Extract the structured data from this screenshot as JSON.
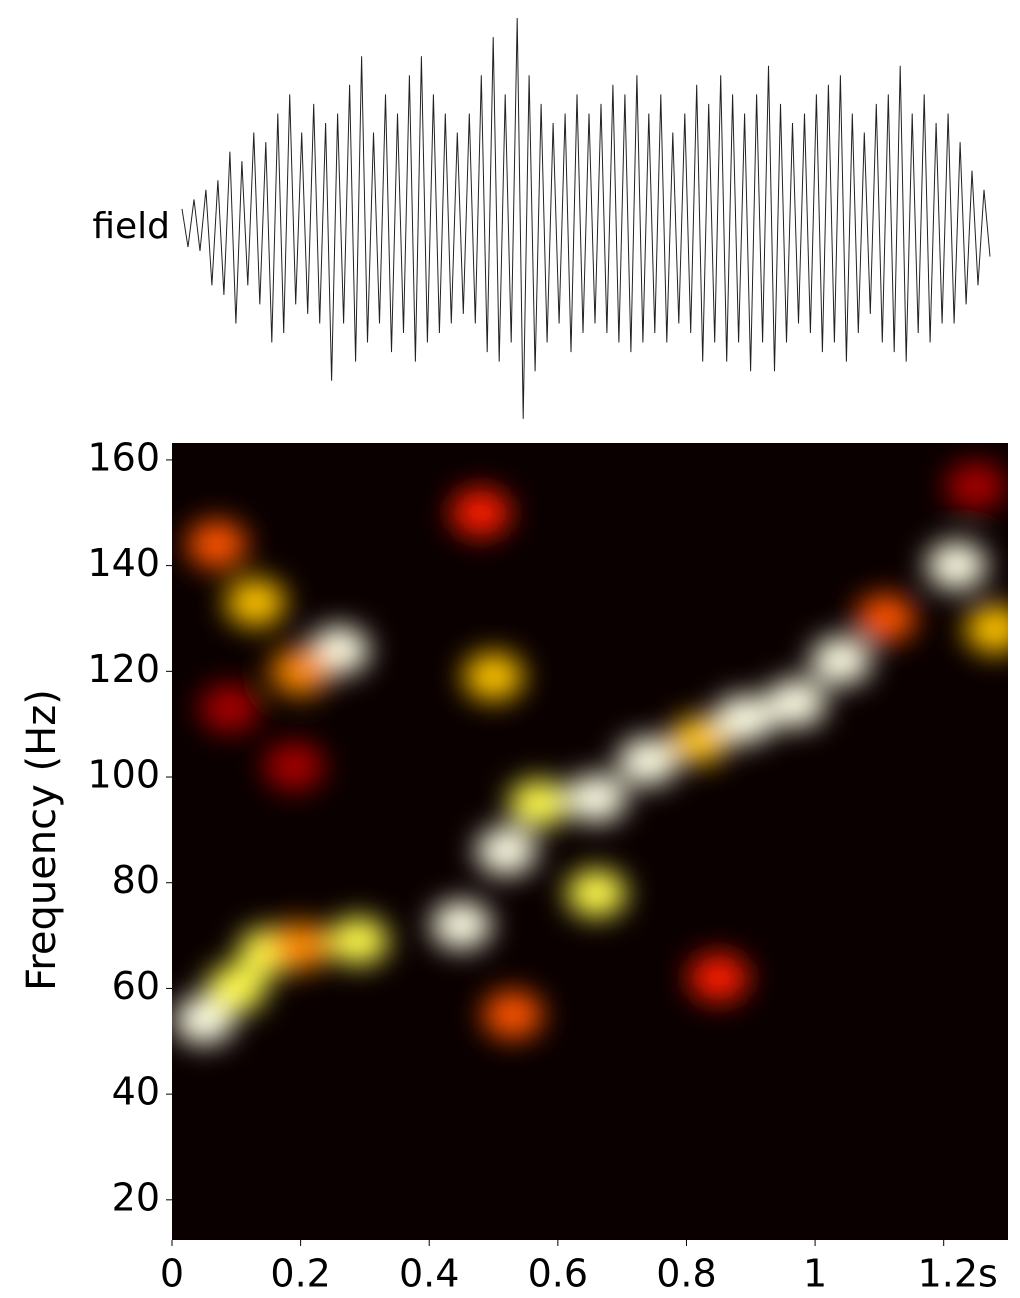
{
  "chart_data": [
    {
      "type": "line",
      "label": "field",
      "color": "#222222",
      "ylim": [
        -1.1,
        1.1
      ],
      "values": [
        0.1,
        -0.1,
        0.15,
        -0.12,
        0.2,
        -0.3,
        0.25,
        -0.35,
        0.4,
        -0.5,
        0.35,
        -0.3,
        0.5,
        -0.4,
        0.45,
        -0.6,
        0.6,
        -0.55,
        0.7,
        -0.4,
        0.5,
        -0.45,
        0.65,
        -0.5,
        0.55,
        -0.8,
        0.6,
        -0.5,
        0.75,
        -0.7,
        0.9,
        -0.6,
        0.5,
        -0.5,
        0.7,
        -0.65,
        0.6,
        -0.55,
        0.8,
        -0.7,
        0.9,
        -0.6,
        0.7,
        -0.55,
        0.6,
        -0.5,
        0.5,
        -0.45,
        0.6,
        -0.5,
        0.8,
        -0.65,
        1.0,
        -0.7,
        0.7,
        -0.6,
        1.1,
        -1.0,
        0.8,
        -0.75,
        0.65,
        -0.6,
        0.55,
        -0.5,
        0.6,
        -0.65,
        0.7,
        -0.55,
        0.6,
        -0.5,
        0.65,
        -0.55,
        0.75,
        -0.6,
        0.7,
        -0.65,
        0.8,
        -0.6,
        0.6,
        -0.55,
        0.7,
        -0.6,
        0.5,
        -0.5,
        0.6,
        -0.55,
        0.75,
        -0.7,
        0.65,
        -0.6,
        0.8,
        -0.7,
        0.7,
        -0.6,
        0.6,
        -0.75,
        0.7,
        -0.6,
        0.85,
        -0.75,
        0.65,
        -0.6,
        0.55,
        -0.5,
        0.6,
        -0.55,
        0.7,
        -0.65,
        0.75,
        -0.6,
        0.8,
        -0.7,
        0.6,
        -0.55,
        0.5,
        -0.45,
        0.65,
        -0.6,
        0.7,
        -0.65,
        0.85,
        -0.7,
        0.6,
        -0.55,
        0.7,
        -0.6,
        0.55,
        -0.5,
        0.6,
        -0.5,
        0.45,
        -0.4,
        0.3,
        -0.3,
        0.2,
        -0.15
      ]
    },
    {
      "type": "heatmap",
      "ylabel": "Frequency (Hz)",
      "background": "#0a0000",
      "xlim": [
        0,
        1.3
      ],
      "ylim": [
        12.4,
        163.2
      ],
      "xticks": [
        0,
        0.2,
        0.4,
        0.6,
        0.8,
        1,
        {
          "value": 1.2,
          "label": "1.2s"
        }
      ],
      "yticks": [
        20,
        40,
        60,
        80,
        100,
        120,
        140,
        160
      ],
      "x": [
        0.05,
        0.1,
        0.15,
        0.2,
        0.29,
        0.45,
        0.52,
        0.57,
        0.66,
        0.74,
        0.66,
        0.82,
        0.89,
        0.97,
        1.04,
        1.11,
        1.22,
        1.28,
        0.26,
        0.2,
        0.13,
        0.07,
        0.5,
        0.48,
        0.53,
        0.85,
        0.09,
        0.19,
        1.25
      ],
      "values": [
        54,
        60,
        67,
        68,
        69,
        72,
        86,
        95,
        96,
        103,
        78,
        107,
        111,
        114,
        122,
        130,
        140,
        128,
        124,
        120,
        133,
        144,
        119,
        150,
        55,
        62,
        113,
        102,
        155
      ],
      "intensity": [
        1.0,
        0.9,
        0.9,
        0.7,
        0.9,
        1.0,
        1.0,
        0.9,
        1.0,
        1.0,
        0.9,
        0.8,
        1.0,
        1.0,
        1.0,
        0.6,
        1.0,
        0.8,
        1.0,
        0.7,
        0.8,
        0.6,
        0.8,
        0.5,
        0.6,
        0.5,
        0.3,
        0.3,
        0.3
      ]
    }
  ]
}
